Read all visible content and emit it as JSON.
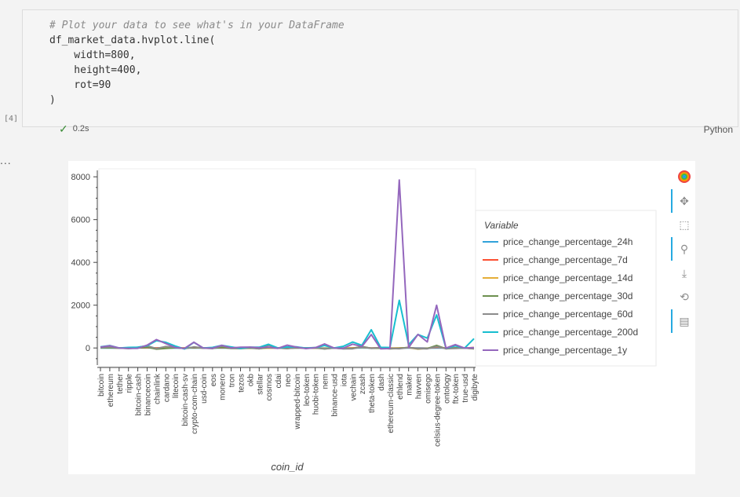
{
  "cell": {
    "code_lines": [
      "# Plot your data to see what's in your DataFrame",
      "df_market_data.hvplot.line(",
      "    width=800,",
      "    height=400,",
      "    rot=90",
      ")"
    ],
    "execution_count": "[4]",
    "elapsed": "0.2s",
    "language": "Python"
  },
  "output_marker": "...",
  "toolbar": {
    "tools": [
      "bokeh-logo-icon",
      "pan-icon",
      "box-zoom-icon",
      "wheel-zoom-icon",
      "save-icon",
      "reset-icon",
      "hover-icon"
    ]
  },
  "colors": {
    "price_change_percentage_24h": "#30a2da",
    "price_change_percentage_7d": "#fc4f30",
    "price_change_percentage_14d": "#e5ae38",
    "price_change_percentage_30d": "#6d904f",
    "price_change_percentage_60d": "#8b8b8b",
    "price_change_percentage_200d": "#17becf",
    "price_change_percentage_1y": "#9467bd"
  },
  "chart_data": {
    "type": "line",
    "xlabel": "coin_id",
    "ylabel": "",
    "ylim": [
      -800,
      8300
    ],
    "yticks": [
      0,
      2000,
      4000,
      6000,
      8000
    ],
    "legend_title": "Variable",
    "legend_position": "right",
    "x_label_rotation": 90,
    "categories": [
      "bitcoin",
      "ethereum",
      "tether",
      "ripple",
      "bitcoin-cash",
      "binancecoin",
      "chainlink",
      "cardano",
      "litecoin",
      "bitcoin-cash-sv",
      "crypto-com-chain",
      "usd-coin",
      "eos",
      "monero",
      "tron",
      "tezos",
      "okb",
      "stellar",
      "cosmos",
      "cdai",
      "neo",
      "wrapped-bitcoin",
      "leo-token",
      "huobi-token",
      "nem",
      "binance-usd",
      "iota",
      "vechain",
      "zcash",
      "theta-token",
      "dash",
      "ethereum-classic",
      "ethlend",
      "maker",
      "havven",
      "omisego",
      "celsius-degree-token",
      "ontology",
      "ftx-token",
      "true-usd",
      "digibyte"
    ],
    "series": [
      {
        "name": "price_change_percentage_24h",
        "values": [
          1,
          0,
          0,
          -1,
          2,
          2,
          -1,
          1,
          0,
          -2,
          1,
          0,
          -1,
          1,
          0,
          -1,
          0,
          -2,
          0,
          0,
          -2,
          1,
          0,
          0,
          -1,
          0,
          -3,
          -1,
          3,
          -1,
          1,
          1,
          -6,
          2,
          -3,
          -7,
          -2,
          -2,
          -4,
          0,
          -3
        ]
      },
      {
        "name": "price_change_percentage_7d",
        "values": [
          7,
          10,
          0,
          -9,
          11,
          14,
          2,
          7,
          10,
          -5,
          15,
          0,
          -2,
          16,
          -6,
          -8,
          -2,
          -13,
          9,
          -1,
          6,
          7,
          3,
          -3,
          -20,
          0,
          -10,
          3,
          31,
          -6,
          13,
          -6,
          -8,
          20,
          -20,
          -14,
          35,
          -3,
          -2,
          0,
          15
        ]
      },
      {
        "name": "price_change_percentage_14d",
        "values": [
          6,
          13,
          0,
          -9,
          20,
          33,
          -11,
          -6,
          14,
          -1,
          29,
          0,
          -5,
          34,
          -8,
          -20,
          -4,
          -20,
          2,
          -5,
          -5,
          6,
          -4,
          5,
          -13,
          0,
          -7,
          -9,
          36,
          -8,
          5,
          -15,
          0,
          11,
          -47,
          -16,
          57,
          -14,
          -11,
          0,
          19
        ]
      },
      {
        "name": "price_change_percentage_30d",
        "values": [
          8,
          9,
          0,
          -26,
          6,
          38,
          -50,
          -19,
          6,
          -14,
          26,
          0,
          -16,
          31,
          -21,
          -27,
          -5,
          -34,
          24,
          -1,
          -24,
          8,
          -1,
          4,
          -44,
          0,
          -33,
          -21,
          69,
          -16,
          -9,
          -41,
          -13,
          25,
          -38,
          -27,
          120,
          -36,
          2,
          0,
          -38
        ]
      },
      {
        "name": "price_change_percentage_60d",
        "values": [
          22,
          43,
          0,
          -12,
          35,
          99,
          -24,
          65,
          38,
          -37,
          52,
          0,
          -28,
          94,
          0,
          -23,
          27,
          -38,
          124,
          -1,
          -27,
          22,
          2,
          13,
          -36,
          0,
          -38,
          -35,
          48,
          -15,
          21,
          -17,
          -34,
          18,
          -27,
          -36,
          65,
          -30,
          -20,
          0,
          -33
        ]
      },
      {
        "name": "price_change_percentage_200d",
        "values": [
          52,
          114,
          0,
          26,
          35,
          104,
          343,
          265,
          90,
          -43,
          265,
          0,
          27,
          122,
          46,
          -17,
          35,
          34,
          173,
          -1,
          49,
          53,
          -9,
          15,
          119,
          0,
          78,
          278,
          126,
          850,
          31,
          21,
          2228,
          155,
          630,
          457,
          1544,
          -7,
          99,
          -2,
          437
        ]
      },
      {
        "name": "price_change_percentage_1y",
        "values": [
          42,
          101,
          0,
          -18,
          -16,
          133,
          393,
          204,
          23,
          -18,
          266,
          0,
          -11,
          126,
          5,
          35,
          42,
          11,
          42,
          -17,
          133,
          42,
          -29,
          10,
          189,
          0,
          -14,
          181,
          71,
          629,
          -36,
          -26,
          7853,
          17,
          634,
          284,
          1997,
          -2,
          158,
          -9,
          20
        ]
      }
    ]
  }
}
